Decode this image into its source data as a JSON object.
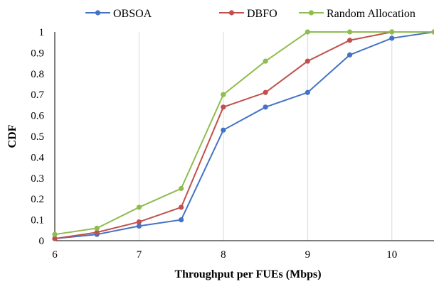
{
  "chart_data": {
    "type": "line",
    "title": "",
    "xlabel": "Throughput  per FUEs (Mbps)",
    "ylabel": "CDF",
    "xlim": [
      6,
      10.5
    ],
    "ylim": [
      0,
      1
    ],
    "x_ticks": [
      "6",
      "7",
      "8",
      "9",
      "10"
    ],
    "y_ticks": [
      "0",
      "0.1",
      "0.2",
      "0.3",
      "0.4",
      "0.5",
      "0.6",
      "0.7",
      "0.8",
      "0.9",
      "1"
    ],
    "grid": "vertical",
    "legend_position": "top",
    "x": [
      6,
      6.5,
      7,
      7.5,
      8,
      8.5,
      9,
      9.5,
      10,
      10.5
    ],
    "series": [
      {
        "name": "OBSOA",
        "color": "#4472c4",
        "values": [
          0.01,
          0.03,
          0.07,
          0.1,
          0.53,
          0.64,
          0.71,
          0.89,
          0.97,
          1.0
        ]
      },
      {
        "name": "DBFO",
        "color": "#c0504d",
        "values": [
          0.01,
          0.04,
          0.09,
          0.16,
          0.64,
          0.71,
          0.86,
          0.96,
          1.0,
          1.0
        ]
      },
      {
        "name": "Random Allocation",
        "color": "#8fbc4f",
        "values": [
          0.03,
          0.06,
          0.16,
          0.25,
          0.7,
          0.86,
          1.0,
          1.0,
          1.0,
          1.0
        ]
      }
    ]
  }
}
